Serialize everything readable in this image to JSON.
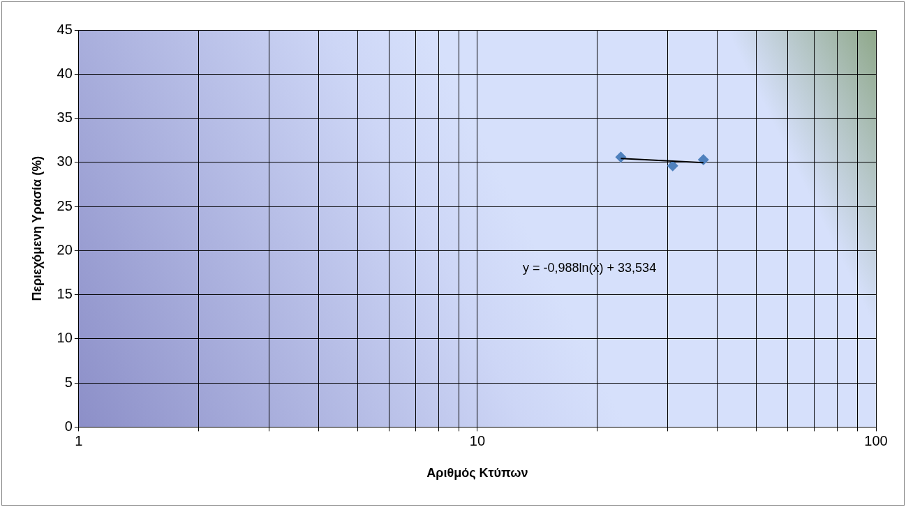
{
  "chart_data": {
    "type": "scatter",
    "xlabel": "Αριθμός Κτύπων",
    "ylabel": "Περιεχόμενη Υρασία (%)",
    "log": "x",
    "xlim": [
      1,
      100
    ],
    "ylim": [
      0,
      45
    ],
    "xticks": [
      1,
      {
        "value": 2,
        "label": null
      },
      {
        "value": 3,
        "label": null
      },
      {
        "value": 4,
        "label": null
      },
      {
        "value": 5,
        "label": null
      },
      {
        "value": 6,
        "label": null
      },
      {
        "value": 7,
        "label": null
      },
      {
        "value": 8,
        "label": null
      },
      {
        "value": 9,
        "label": null
      },
      10,
      {
        "value": 20,
        "label": null
      },
      {
        "value": 30,
        "label": null
      },
      {
        "value": 40,
        "label": null
      },
      {
        "value": 50,
        "label": null
      },
      {
        "value": 60,
        "label": null
      },
      {
        "value": 70,
        "label": null
      },
      {
        "value": 80,
        "label": null
      },
      {
        "value": 90,
        "label": null
      },
      100
    ],
    "yticks": [
      0,
      5,
      10,
      15,
      20,
      25,
      30,
      35,
      40,
      45
    ],
    "grid": true,
    "legend": false,
    "marker": "diamond",
    "series": [
      {
        "color": "#4f81bd",
        "x": [
          22.9,
          30.9,
          36.9
        ],
        "values": [
          30.6,
          29.6,
          30.3
        ]
      },
      {
        "type": "line",
        "color": "#000000",
        "marker": "none",
        "x": [
          22.9,
          36.9
        ],
        "values": [
          30.44,
          29.97
        ]
      }
    ],
    "annotations": [
      "y = -0,988ln(x) + 33,534"
    ]
  }
}
